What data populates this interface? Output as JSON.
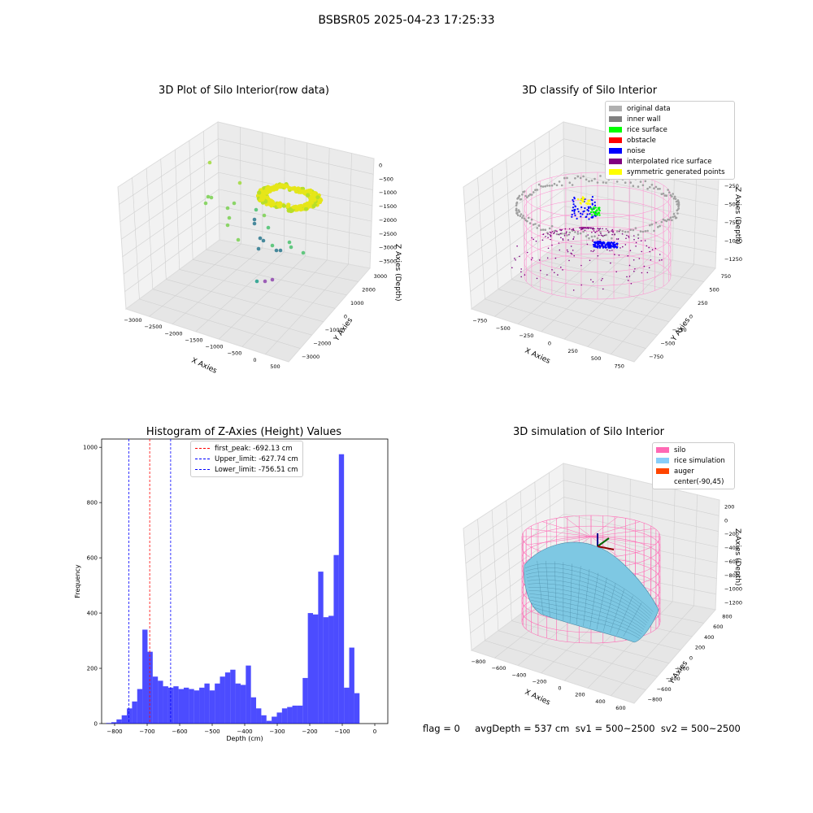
{
  "figure_title": "BSBSR05 2025-04-23 17:25:33",
  "footer_text": "flag = 0     avgDepth = 537 cm  sv1 = 500~2500  sv2 = 500~2500",
  "chart_data": [
    {
      "type": "scatter",
      "title": "3D Plot of Silo Interior(row data)",
      "xlabel": "X Axies",
      "ylabel": "Y Axies",
      "zlabel": "Z Axies (Depth)",
      "x_ticks": [
        "−3000",
        "−2500",
        "−2000",
        "−1500",
        "−1000",
        "−500",
        "0",
        "500"
      ],
      "y_ticks": [
        "−3000",
        "−2000",
        "−1000",
        "0",
        "1000",
        "2000",
        "3000"
      ],
      "z_ticks": [
        "0",
        "−500",
        "−1000",
        "−1500",
        "−2000",
        "−2500",
        "−3000",
        "−3500"
      ]
    },
    {
      "type": "scatter",
      "title": "3D classify of Silo Interior",
      "xlabel": "X Axies",
      "ylabel": "Y Axies",
      "zlabel": "Z Axies (Depth)",
      "x_ticks": [
        "−750",
        "−500",
        "−250",
        "0",
        "250",
        "500",
        "750"
      ],
      "y_ticks": [
        "−750",
        "−500",
        "−250",
        "0",
        "250",
        "500",
        "750"
      ],
      "z_ticks": [
        "0",
        "−250",
        "−500",
        "−750",
        "−1000",
        "−1250"
      ],
      "z_top_tick": "0",
      "legend": [
        {
          "label": "original data",
          "color": "#b0b0b0"
        },
        {
          "label": "inner wall",
          "color": "#808080"
        },
        {
          "label": "rice surface",
          "color": "#00ff00"
        },
        {
          "label": "obstacle",
          "color": "#ff0000"
        },
        {
          "label": "noise",
          "color": "#0000ff"
        },
        {
          "label": "interpolated rice surface",
          "color": "#800080"
        },
        {
          "label": "symmetric generated points",
          "color": "#ffff00"
        }
      ]
    },
    {
      "type": "bar",
      "title": "Histogram of Z-Axies (Height) Values",
      "xlabel": "Depth (cm)",
      "ylabel": "Frequency",
      "xlim": [
        -840,
        40
      ],
      "ylim": [
        0,
        1030
      ],
      "x_ticks": [
        -800,
        -700,
        -600,
        -500,
        -400,
        -300,
        -200,
        -100,
        0
      ],
      "y_ticks": [
        0,
        200,
        400,
        600,
        800,
        1000
      ],
      "bar_color": "#0000ff",
      "bin_start": -826,
      "bin_width": 15.9,
      "values": [
        2,
        5,
        15,
        30,
        55,
        80,
        125,
        340,
        260,
        170,
        155,
        135,
        130,
        135,
        125,
        130,
        125,
        120,
        130,
        145,
        120,
        145,
        170,
        185,
        195,
        145,
        140,
        210,
        95,
        55,
        30,
        10,
        25,
        40,
        55,
        60,
        65,
        65,
        165,
        400,
        395,
        550,
        385,
        390,
        610,
        975,
        130,
        275,
        110
      ],
      "vlines": [
        {
          "label": "first_peak: -692.13 cm",
          "x": -692.13,
          "color": "#ff0000"
        },
        {
          "label": "Upper_limit: -627.74 cm",
          "x": -627.74,
          "color": "#0000ff"
        },
        {
          "label": "Lower_limit: -756.51 cm",
          "x": -756.51,
          "color": "#0000ff"
        }
      ]
    },
    {
      "type": "surface",
      "title": "3D simulation of Silo Interior",
      "xlabel": "X Axies",
      "ylabel": "Y Axies",
      "zlabel": "Z Axies (Depth)",
      "x_ticks": [
        "−800",
        "−600",
        "−400",
        "−200",
        "0",
        "200",
        "400",
        "600"
      ],
      "y_ticks": [
        "−800",
        "−600",
        "−400",
        "−200",
        "0",
        "200",
        "400",
        "600",
        "800"
      ],
      "z_ticks": [
        "200",
        "0",
        "−200",
        "−400",
        "−600",
        "−800",
        "−1000",
        "−1200"
      ],
      "legend": [
        {
          "label": "silo",
          "color": "#ff69b4"
        },
        {
          "label": "rice simulation",
          "color": "#87cefa"
        },
        {
          "label": "auger",
          "color": "#ff4500"
        },
        {
          "label": "center(-90,45)",
          "color": "#ffffff"
        }
      ]
    }
  ]
}
